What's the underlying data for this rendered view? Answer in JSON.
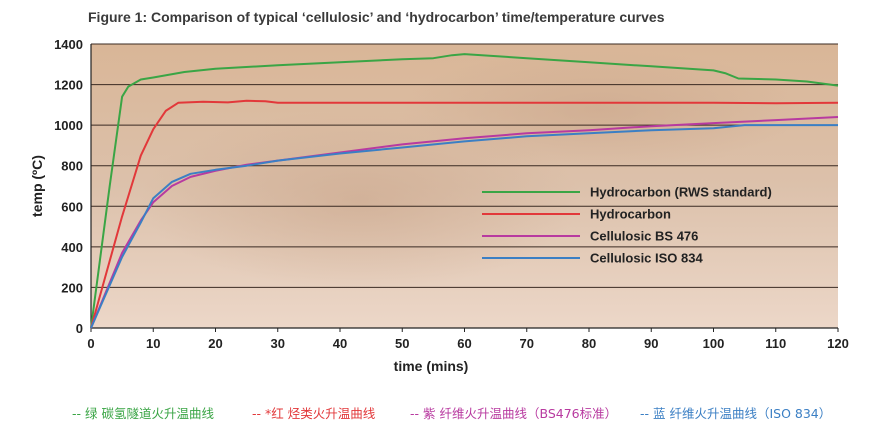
{
  "chart_data": {
    "type": "line",
    "title": "Figure 1:  Comparison of typical ‘cellulosic’ and ‘hydrocarbon’ time/temperature curves",
    "xlabel": "time (mins)",
    "ylabel": "temp (ºC)",
    "xlim": [
      0,
      120
    ],
    "ylim": [
      0,
      1400
    ],
    "x_ticks": [
      "0",
      "10",
      "20",
      "30",
      "40",
      "50",
      "60",
      "70",
      "80",
      "90",
      "100",
      "110",
      "120"
    ],
    "y_ticks": [
      "0",
      "200",
      "400",
      "600",
      "800",
      "1000",
      "1200",
      "1400"
    ],
    "grid": true,
    "legend_position": "center-right",
    "series": [
      {
        "name": "Hydrocarbon (RWS standard)",
        "color": "#3aa545",
        "points": [
          [
            0,
            0
          ],
          [
            3,
            700
          ],
          [
            5,
            1140
          ],
          [
            6,
            1190
          ],
          [
            8,
            1225
          ],
          [
            10,
            1235
          ],
          [
            15,
            1262
          ],
          [
            20,
            1278
          ],
          [
            30,
            1295
          ],
          [
            40,
            1310
          ],
          [
            50,
            1325
          ],
          [
            55,
            1330
          ],
          [
            58,
            1345
          ],
          [
            60,
            1350
          ],
          [
            70,
            1330
          ],
          [
            80,
            1310
          ],
          [
            90,
            1290
          ],
          [
            100,
            1270
          ],
          [
            102,
            1255
          ],
          [
            104,
            1230
          ],
          [
            110,
            1225
          ],
          [
            115,
            1215
          ],
          [
            120,
            1195
          ]
        ]
      },
      {
        "name": "Hydrocarbon",
        "color": "#e2383a",
        "points": [
          [
            0,
            0
          ],
          [
            5,
            550
          ],
          [
            8,
            850
          ],
          [
            10,
            980
          ],
          [
            12,
            1070
          ],
          [
            14,
            1110
          ],
          [
            18,
            1115
          ],
          [
            22,
            1112
          ],
          [
            25,
            1120
          ],
          [
            28,
            1118
          ],
          [
            30,
            1110
          ],
          [
            40,
            1110
          ],
          [
            60,
            1110
          ],
          [
            80,
            1110
          ],
          [
            100,
            1110
          ],
          [
            110,
            1108
          ],
          [
            120,
            1110
          ]
        ]
      },
      {
        "name": "Cellulosic BS 476",
        "color": "#b83aa0",
        "points": [
          [
            0,
            0
          ],
          [
            5,
            370
          ],
          [
            8,
            530
          ],
          [
            10,
            620
          ],
          [
            13,
            700
          ],
          [
            16,
            745
          ],
          [
            20,
            775
          ],
          [
            25,
            805
          ],
          [
            30,
            825
          ],
          [
            40,
            865
          ],
          [
            50,
            905
          ],
          [
            60,
            935
          ],
          [
            70,
            960
          ],
          [
            80,
            975
          ],
          [
            90,
            995
          ],
          [
            100,
            1010
          ],
          [
            110,
            1025
          ],
          [
            120,
            1040
          ]
        ]
      },
      {
        "name": "Cellulosic ISO 834",
        "color": "#3b7fc4",
        "points": [
          [
            0,
            0
          ],
          [
            5,
            350
          ],
          [
            8,
            520
          ],
          [
            10,
            640
          ],
          [
            13,
            720
          ],
          [
            16,
            760
          ],
          [
            20,
            780
          ],
          [
            25,
            800
          ],
          [
            30,
            825
          ],
          [
            40,
            860
          ],
          [
            50,
            890
          ],
          [
            60,
            920
          ],
          [
            70,
            945
          ],
          [
            80,
            960
          ],
          [
            90,
            975
          ],
          [
            100,
            985
          ],
          [
            105,
            1000
          ],
          [
            110,
            1000
          ],
          [
            120,
            1000
          ]
        ]
      }
    ]
  },
  "notes": [
    {
      "text": "-- 绿 碳氢隧道火升温曲线",
      "color": "#3aa545"
    },
    {
      "text": "-- *红 烃类火升温曲线",
      "color": "#e2383a"
    },
    {
      "text": "-- 紫 纤维火升温曲线（BS476标准）",
      "color": "#b83aa0"
    },
    {
      "text": "-- 蓝 纤维火升温曲线（ISO 834）",
      "color": "#3b7fc4"
    }
  ]
}
